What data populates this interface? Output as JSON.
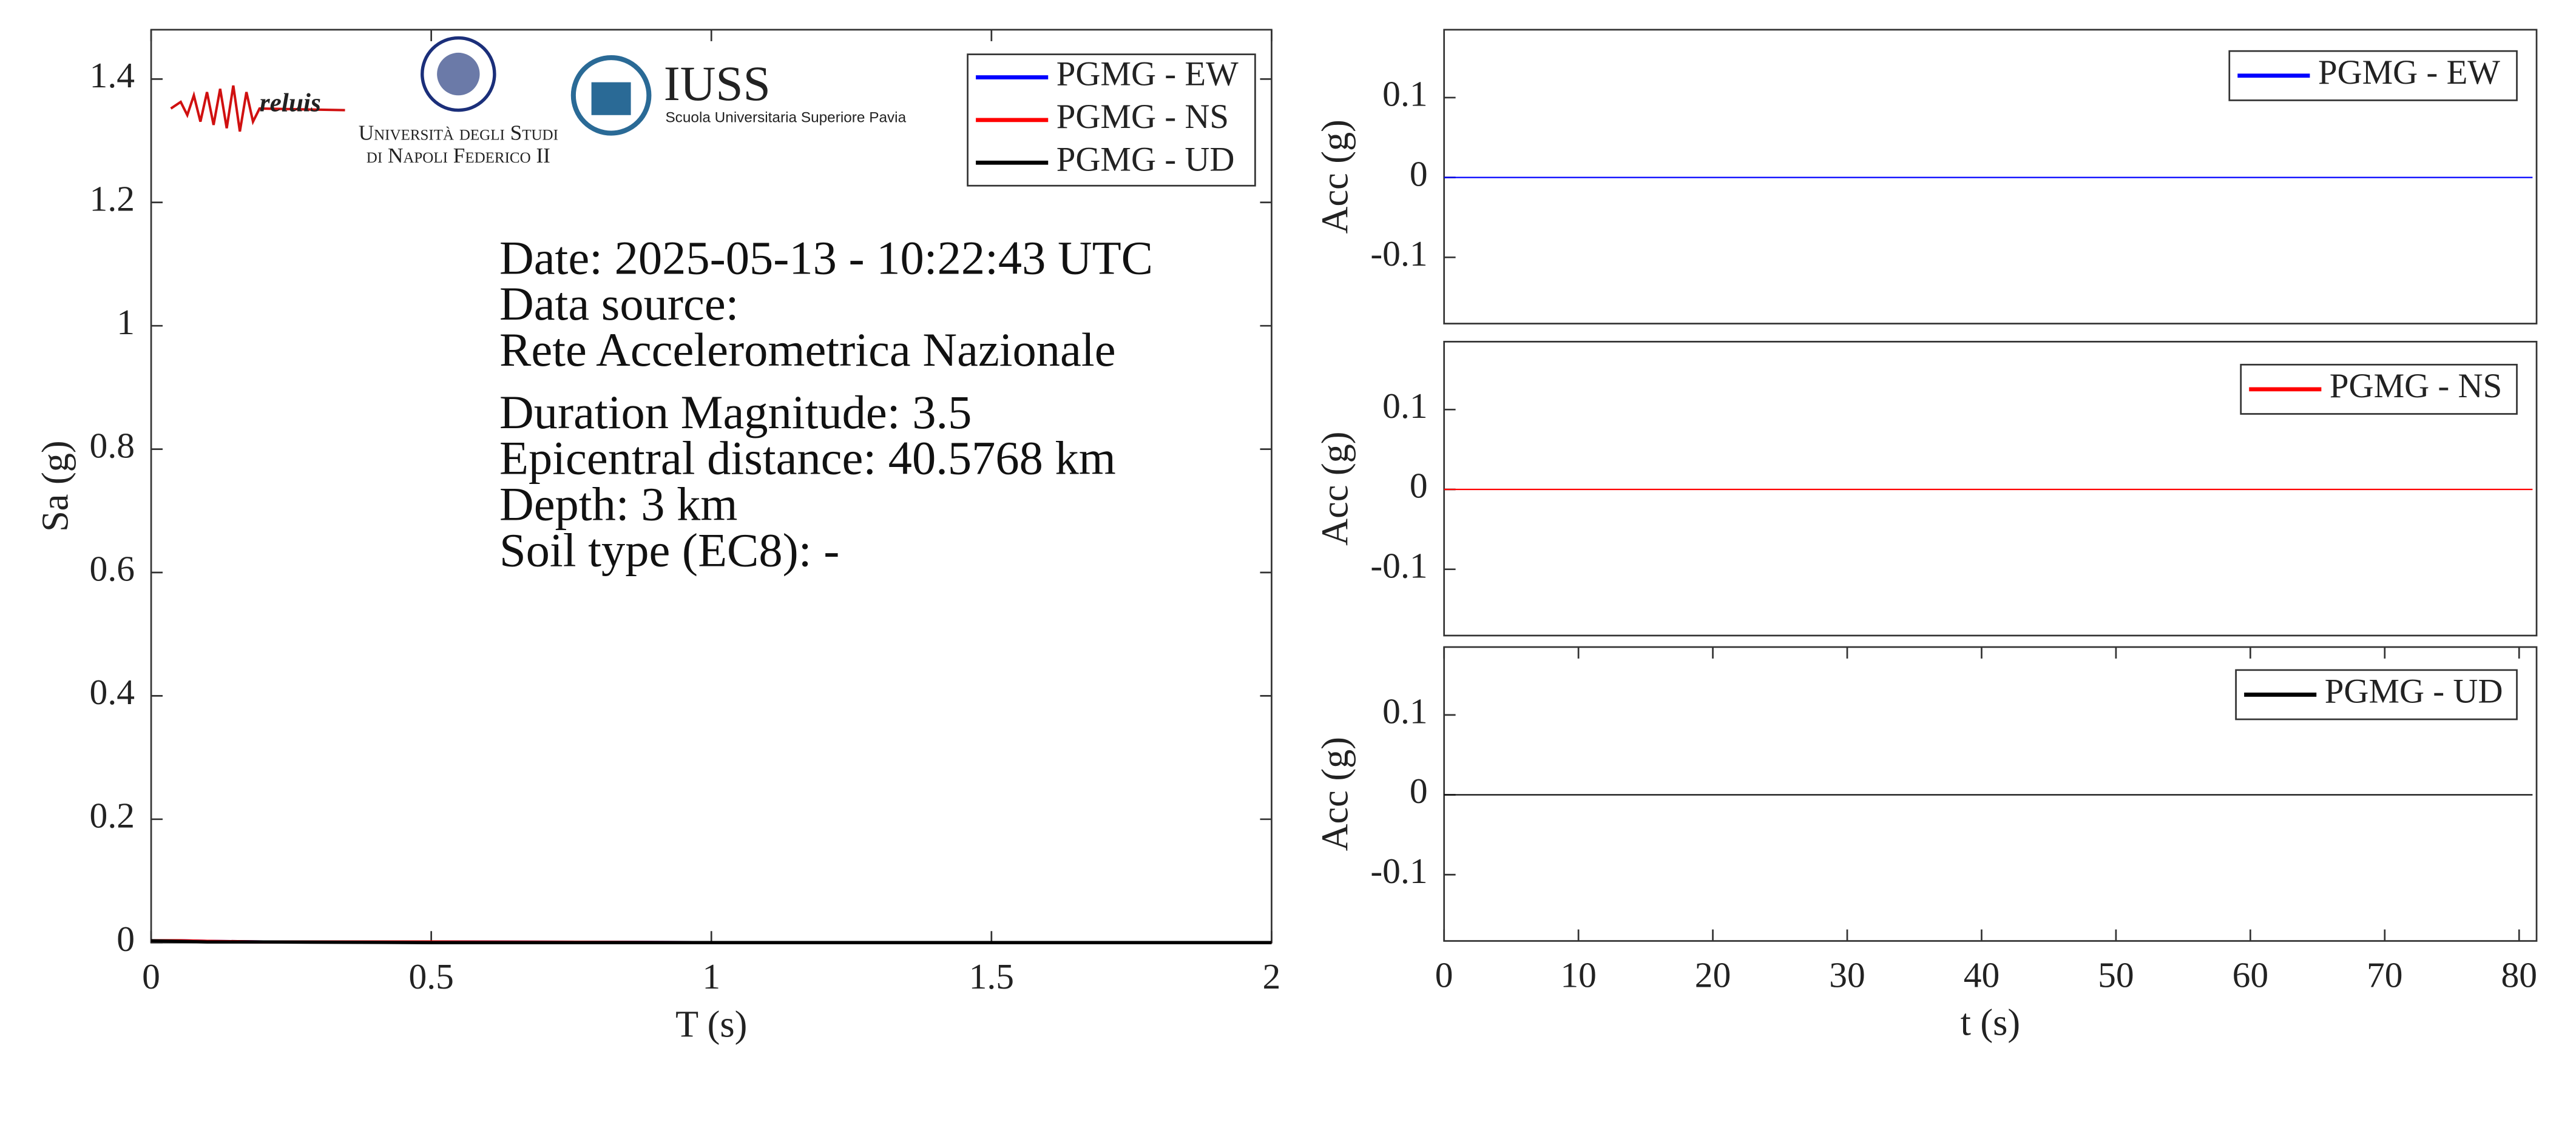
{
  "chart_data": [
    {
      "type": "line",
      "x_label": "T (s)",
      "y_label": "Sa (g)",
      "x": [
        0,
        0.05,
        0.1,
        0.2,
        0.5,
        1,
        1.5,
        2
      ],
      "series": [
        {
          "name": "PGMG - EW",
          "color": "#0000ff",
          "values": [
            0.003,
            0.003,
            0.002,
            0.001,
            0.001,
            0,
            0,
            0
          ]
        },
        {
          "name": "PGMG - NS",
          "color": "#ff0000",
          "values": [
            0.003,
            0.003,
            0.002,
            0.001,
            0.001,
            0,
            0,
            0
          ]
        },
        {
          "name": "PGMG - UD",
          "color": "#000000",
          "values": [
            0.003,
            0.002,
            0.001,
            0.001,
            0,
            0,
            0,
            0
          ]
        }
      ],
      "xlim": [
        0,
        2
      ],
      "xticks": [
        0,
        0.5,
        1,
        1.5,
        2
      ],
      "ylim": [
        0,
        1.48
      ],
      "yticks": [
        0,
        0.2,
        0.4,
        0.6,
        0.8,
        1,
        1.2,
        1.4
      ],
      "legend": "upper right",
      "annotations": [
        "Date: 2025-05-13 - 10:22:43 UTC",
        "Data source:",
        "Rete Accelerometrica Nazionale",
        "Duration Magnitude: 3.5",
        "Epicentral distance: 40.5768 km",
        "Depth: 3 km",
        "Soil type (EC8): -"
      ],
      "logos": [
        "reluis",
        "Università degli Studi",
        "di Napoli Federico II",
        "IUSS",
        "Scuola Universitaria Superiore Pavia"
      ]
    },
    {
      "type": "line",
      "y_label": "Acc (g)",
      "x": [
        0,
        81
      ],
      "series": [
        {
          "name": "PGMG - EW",
          "color": "#0000ff",
          "values": [
            0,
            0
          ]
        }
      ],
      "xlim": [
        0,
        81.3
      ],
      "ylim": [
        -0.183,
        0.185
      ],
      "yticks": [
        -0.1,
        0,
        0.1
      ],
      "legend": "upper right"
    },
    {
      "type": "line",
      "y_label": "Acc (g)",
      "x": [
        0,
        81
      ],
      "series": [
        {
          "name": "PGMG - NS",
          "color": "#ff0000",
          "values": [
            0,
            0
          ]
        }
      ],
      "xlim": [
        0,
        81.3
      ],
      "ylim": [
        -0.183,
        0.185
      ],
      "yticks": [
        -0.1,
        0,
        0.1
      ],
      "legend": "upper right"
    },
    {
      "type": "line",
      "x_label": "t (s)",
      "y_label": "Acc (g)",
      "x": [
        0,
        81
      ],
      "series": [
        {
          "name": "PGMG - UD",
          "color": "#000000",
          "values": [
            0,
            0
          ]
        }
      ],
      "xlim": [
        0,
        81.3
      ],
      "xticks": [
        0,
        10,
        20,
        30,
        40,
        50,
        60,
        70,
        80
      ],
      "ylim": [
        -0.183,
        0.185
      ],
      "yticks": [
        -0.1,
        0,
        0.1
      ],
      "legend": "upper right"
    }
  ]
}
